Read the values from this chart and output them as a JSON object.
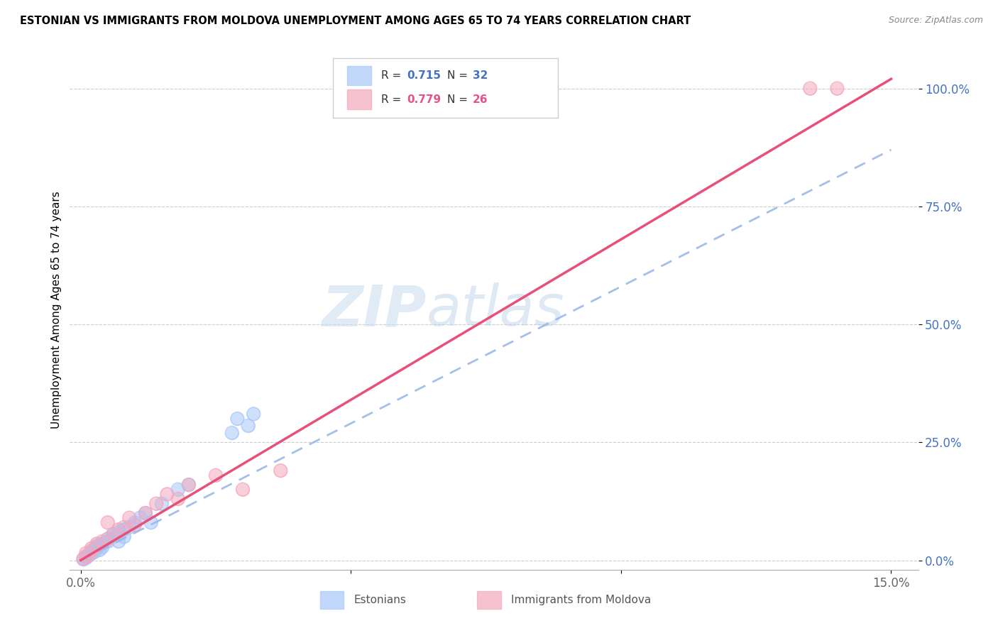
{
  "title": "ESTONIAN VS IMMIGRANTS FROM MOLDOVA UNEMPLOYMENT AMONG AGES 65 TO 74 YEARS CORRELATION CHART",
  "source": "Source: ZipAtlas.com",
  "ylabel": "Unemployment Among Ages 65 to 74 years",
  "xlim": [
    -0.002,
    0.155
  ],
  "ylim": [
    -0.02,
    1.08
  ],
  "xticks": [
    0.0,
    0.05,
    0.1,
    0.15
  ],
  "xtick_labels": [
    "0.0%",
    "",
    "",
    "15.0%"
  ],
  "yticks_right": [
    0.0,
    0.25,
    0.5,
    0.75,
    1.0
  ],
  "ytick_labels_right": [
    "0.0%",
    "25.0%",
    "50.0%",
    "75.0%",
    "100.0%"
  ],
  "blue_R": 0.715,
  "blue_N": 32,
  "pink_R": 0.779,
  "pink_N": 26,
  "blue_color": "#a8c8fa",
  "pink_color": "#f4a8bc",
  "blue_line_color": "#9ab8e8",
  "pink_line_color": "#e8507a",
  "watermark_zip": "ZIP",
  "watermark_atlas": "atlas",
  "blue_line_x": [
    0.0,
    0.15
  ],
  "blue_line_y": [
    0.0,
    0.87
  ],
  "pink_line_x": [
    0.0,
    0.15
  ],
  "pink_line_y": [
    0.0,
    1.02
  ],
  "blue_scatter_x": [
    0.0005,
    0.001,
    0.001,
    0.0015,
    0.002,
    0.002,
    0.0025,
    0.003,
    0.003,
    0.0035,
    0.004,
    0.004,
    0.005,
    0.005,
    0.006,
    0.006,
    0.007,
    0.007,
    0.008,
    0.008,
    0.009,
    0.01,
    0.011,
    0.012,
    0.013,
    0.015,
    0.018,
    0.02,
    0.028,
    0.029,
    0.031,
    0.032
  ],
  "blue_scatter_y": [
    0.002,
    0.005,
    0.008,
    0.01,
    0.015,
    0.02,
    0.018,
    0.025,
    0.03,
    0.022,
    0.035,
    0.028,
    0.04,
    0.045,
    0.05,
    0.055,
    0.06,
    0.04,
    0.065,
    0.05,
    0.07,
    0.08,
    0.09,
    0.1,
    0.08,
    0.12,
    0.15,
    0.16,
    0.27,
    0.3,
    0.285,
    0.31
  ],
  "pink_scatter_x": [
    0.0005,
    0.001,
    0.001,
    0.0015,
    0.002,
    0.002,
    0.003,
    0.003,
    0.004,
    0.005,
    0.005,
    0.006,
    0.007,
    0.008,
    0.009,
    0.01,
    0.012,
    0.014,
    0.016,
    0.018,
    0.02,
    0.025,
    0.03,
    0.037,
    0.135,
    0.14
  ],
  "pink_scatter_y": [
    0.003,
    0.008,
    0.015,
    0.012,
    0.02,
    0.025,
    0.03,
    0.035,
    0.04,
    0.045,
    0.08,
    0.055,
    0.065,
    0.07,
    0.09,
    0.075,
    0.1,
    0.12,
    0.14,
    0.13,
    0.16,
    0.18,
    0.15,
    0.19,
    1.0,
    1.0
  ]
}
